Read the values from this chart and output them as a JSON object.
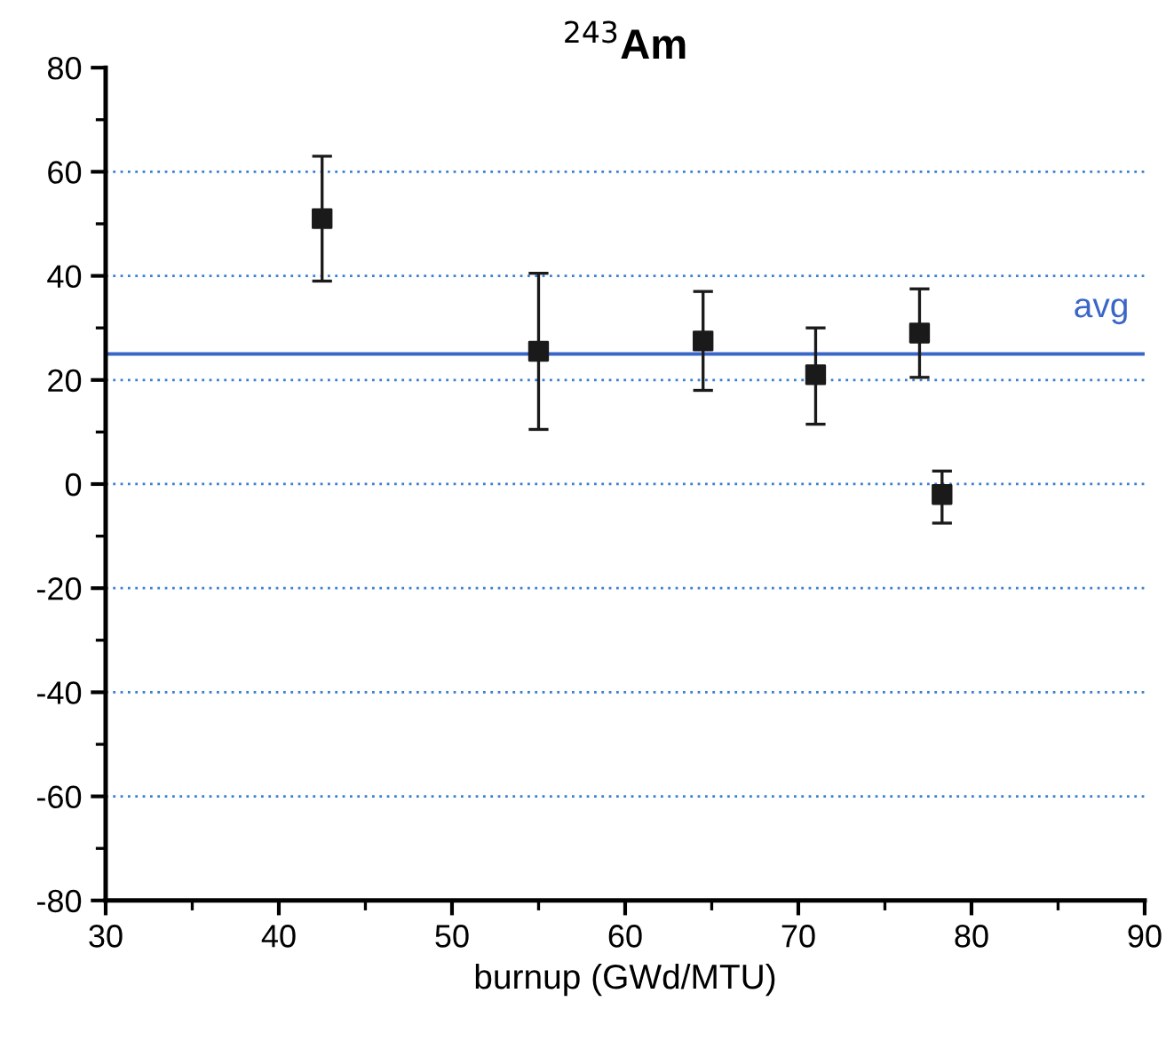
{
  "chart_data": {
    "type": "scatter",
    "title": "$^{243}$Am",
    "xlabel": "burnup (GWd/MTU)",
    "x": [
      42.5,
      55,
      64.5,
      71,
      77,
      78.3
    ],
    "values": [
      51,
      25.5,
      27.5,
      21,
      29,
      -2
    ],
    "errors": [
      [
        39,
        63
      ],
      [
        10.5,
        40.5
      ],
      [
        18,
        37
      ],
      [
        11.5,
        30
      ],
      [
        20.5,
        37.5
      ],
      [
        -7.5,
        2.5
      ]
    ],
    "color": "#1a1a1a",
    "marker": "square",
    "xlim": [
      30,
      90
    ],
    "xticks": [
      30,
      40,
      50,
      60,
      70,
      80,
      90
    ],
    "ylim": [
      -80,
      80
    ],
    "yticks": [
      -80,
      -60,
      -40,
      -20,
      0,
      20,
      40,
      60,
      80
    ],
    "grid": "y",
    "ref_lines": [
      {
        "axis": "y",
        "value": 25,
        "label": "avg",
        "color": "#3a66c8",
        "line_style": "solid"
      }
    ]
  }
}
